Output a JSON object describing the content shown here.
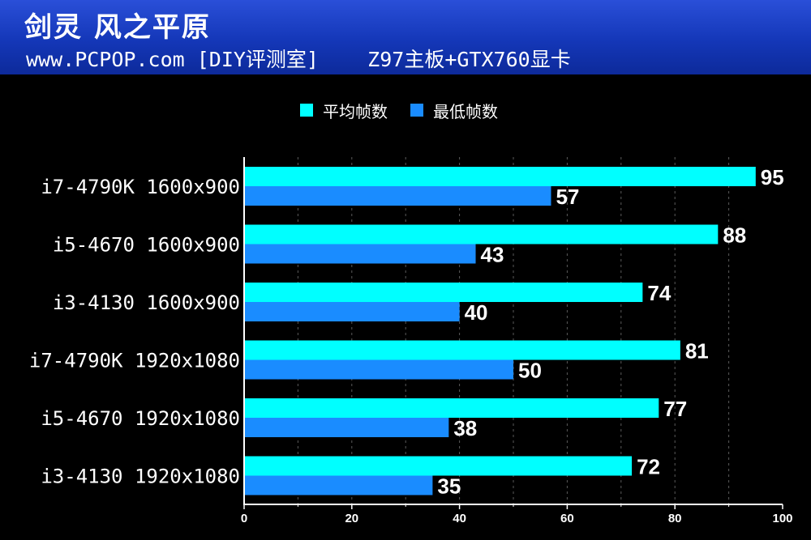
{
  "header": {
    "title": "剑灵 风之平原",
    "subtitle": "www.PCPOP.com [DIY评测室]    Z97主板+GTX760显卡"
  },
  "chart_data": {
    "type": "bar",
    "orientation": "horizontal",
    "categories": [
      "i7-4790K 1600x900",
      "i5-4670 1600x900",
      "i3-4130 1600x900",
      "i7-4790K 1920x1080",
      "i5-4670 1920x1080",
      "i3-4130 1920x1080"
    ],
    "series": [
      {
        "name": "平均帧数",
        "color": "#00ffff",
        "values": [
          95,
          88,
          74,
          81,
          77,
          72
        ]
      },
      {
        "name": "最低帧数",
        "color": "#1a8cff",
        "values": [
          57,
          43,
          40,
          50,
          38,
          35
        ]
      }
    ],
    "xlim": [
      0,
      100
    ],
    "xticks": [
      0,
      20,
      40,
      60,
      80,
      100
    ],
    "grid": true,
    "legend_position": "top-center"
  }
}
